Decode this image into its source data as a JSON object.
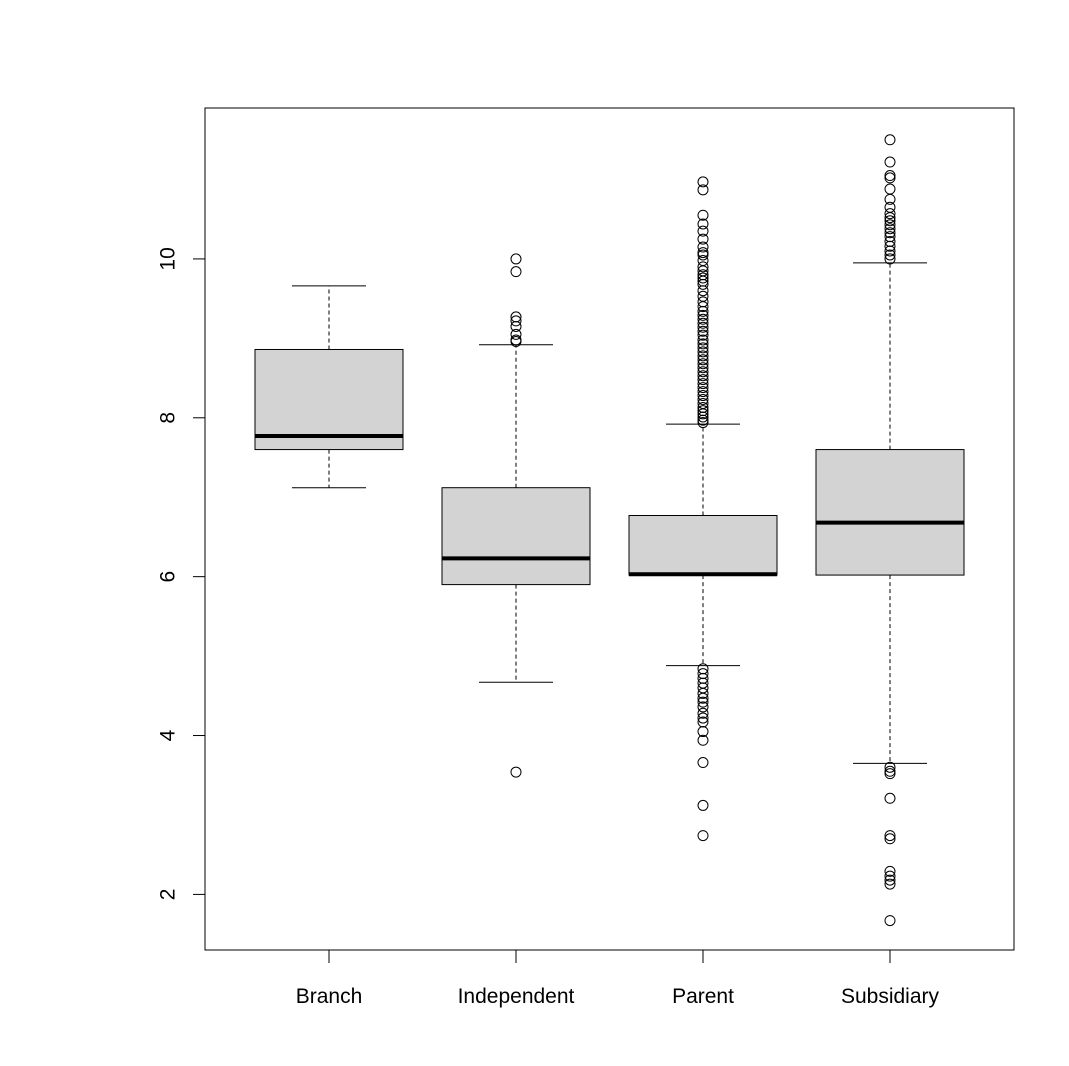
{
  "chart_data": {
    "type": "boxplot",
    "title": "",
    "xlabel": "",
    "ylabel": "",
    "ylim": [
      1.3,
      11.9
    ],
    "y_ticks": [
      2,
      4,
      6,
      8,
      10
    ],
    "y_tick_labels": [
      "2",
      "4",
      "6",
      "8",
      "10"
    ],
    "categories": [
      "Branch",
      "Independent",
      "Parent",
      "Subsidiary"
    ],
    "colors": {
      "box_fill": "#d3d3d3",
      "stroke": "#000000",
      "background": "#ffffff"
    },
    "boxes": [
      {
        "category": "Branch",
        "lower_whisker": 7.12,
        "q1": 7.6,
        "median": 7.77,
        "q3": 8.86,
        "upper_whisker": 9.66,
        "outliers": []
      },
      {
        "category": "Independent",
        "lower_whisker": 4.67,
        "q1": 5.9,
        "median": 6.23,
        "q3": 7.12,
        "upper_whisker": 8.92,
        "outliers": [
          10.0,
          9.84,
          9.27,
          9.22,
          9.15,
          9.05,
          8.98,
          8.96,
          3.54
        ]
      },
      {
        "category": "Parent",
        "lower_whisker": 4.88,
        "q1": 6.02,
        "median": 6.03,
        "q3": 6.77,
        "upper_whisker": 7.92,
        "outliers": [
          10.97,
          10.87,
          10.55,
          10.44,
          10.35,
          10.25,
          10.15,
          10.08,
          10.05,
          9.98,
          9.9,
          9.85,
          9.8,
          9.76,
          9.72,
          9.68,
          9.6,
          9.53,
          9.46,
          9.4,
          9.34,
          9.29,
          9.24,
          9.19,
          9.14,
          9.09,
          9.04,
          8.98,
          8.93,
          8.88,
          8.83,
          8.78,
          8.73,
          8.68,
          8.63,
          8.58,
          8.53,
          8.48,
          8.43,
          8.38,
          8.33,
          8.28,
          8.23,
          8.18,
          8.13,
          8.09,
          8.05,
          8.01,
          7.97,
          7.94,
          4.84,
          4.78,
          4.72,
          4.66,
          4.6,
          4.53,
          4.47,
          4.42,
          4.36,
          4.28,
          4.22,
          4.17,
          4.05,
          3.94,
          3.66,
          3.12,
          2.74
        ]
      },
      {
        "category": "Subsidiary",
        "lower_whisker": 3.65,
        "q1": 6.02,
        "median": 6.68,
        "q3": 7.6,
        "upper_whisker": 9.95,
        "outliers": [
          11.5,
          11.22,
          11.05,
          11.02,
          10.88,
          10.75,
          10.65,
          10.57,
          10.52,
          10.48,
          10.43,
          10.38,
          10.33,
          10.28,
          10.22,
          10.16,
          10.1,
          10.05,
          10.0,
          3.6,
          3.55,
          3.52,
          3.21,
          2.74,
          2.7,
          2.29,
          2.23,
          2.18,
          2.13,
          1.67
        ]
      }
    ]
  }
}
